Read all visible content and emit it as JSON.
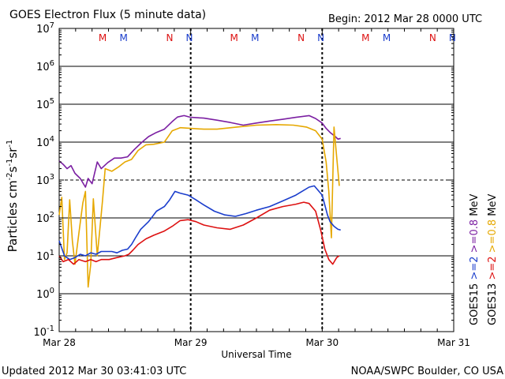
{
  "header": {
    "title": "GOES Electron Flux (5 minute data)",
    "begin": "Begin: 2012 Mar 28 0000 UTC"
  },
  "footer": {
    "updated": "Updated 2012 Mar 30 03:41:03 UTC",
    "credit": "NOAA/SWPC Boulder, CO USA"
  },
  "colors": {
    "goes15_high": "#7b1fa2",
    "goes13_high": "#e6a800",
    "goes15_low": "#1a3dcc",
    "goes13_low": "#dd1111",
    "marker_m": "#dd1111",
    "marker_n": "#1a3dcc"
  },
  "chart_data": {
    "type": "line",
    "title": "GOES Electron Flux (5 minute data)",
    "xlabel": "Universal Time",
    "ylabel": "Particles cm-2 s-1 sr-1",
    "y_scale": "log",
    "ylim_exp": [
      -1,
      7
    ],
    "y_ticks": [
      {
        "exp": -1,
        "base": "10",
        "sup": "-1"
      },
      {
        "exp": 0,
        "base": "10",
        "sup": "0"
      },
      {
        "exp": 1,
        "base": "10",
        "sup": "1"
      },
      {
        "exp": 2,
        "base": "10",
        "sup": "2"
      },
      {
        "exp": 3,
        "base": "10",
        "sup": "3"
      },
      {
        "exp": 4,
        "base": "10",
        "sup": "4"
      },
      {
        "exp": 5,
        "base": "10",
        "sup": "5"
      },
      {
        "exp": 6,
        "base": "10",
        "sup": "6"
      },
      {
        "exp": 7,
        "base": "10",
        "sup": "7"
      }
    ],
    "xlim_days": [
      0,
      3
    ],
    "x_ticks": [
      {
        "day": 0,
        "label": "Mar 28"
      },
      {
        "day": 1,
        "label": "Mar 29"
      },
      {
        "day": 2,
        "label": "Mar 30"
      },
      {
        "day": 3,
        "label": "Mar 31"
      }
    ],
    "threshold_exp": 3,
    "markers": [
      {
        "label": "M",
        "day": 0.33,
        "sat": "GOES13"
      },
      {
        "label": "M",
        "day": 0.49,
        "sat": "GOES15"
      },
      {
        "label": "N",
        "day": 0.84,
        "sat": "GOES13"
      },
      {
        "label": "N",
        "day": 0.99,
        "sat": "GOES15"
      },
      {
        "label": "M",
        "day": 1.33,
        "sat": "GOES13"
      },
      {
        "label": "M",
        "day": 1.49,
        "sat": "GOES15"
      },
      {
        "label": "N",
        "day": 1.84,
        "sat": "GOES13"
      },
      {
        "label": "N",
        "day": 1.99,
        "sat": "GOES15"
      },
      {
        "label": "M",
        "day": 2.33,
        "sat": "GOES13"
      },
      {
        "label": "M",
        "day": 2.49,
        "sat": "GOES15"
      },
      {
        "label": "N",
        "day": 2.84,
        "sat": "GOES13"
      },
      {
        "label": "N",
        "day": 2.99,
        "sat": "GOES15"
      }
    ],
    "legend": {
      "goes15_label": "GOES15",
      "goes13_label": "GOES13",
      "goes15_low": ">=2",
      "goes15_high": ">=0.8",
      "goes13_low": ">=2",
      "goes13_high": ">=0.8",
      "unit": "MeV"
    },
    "series": [
      {
        "name": "GOES15 >=0.8 MeV",
        "color": "#7b1fa2",
        "points": [
          [
            0.0,
            3200
          ],
          [
            0.03,
            2600
          ],
          [
            0.06,
            2000
          ],
          [
            0.09,
            2400
          ],
          [
            0.12,
            1500
          ],
          [
            0.16,
            1100
          ],
          [
            0.2,
            650
          ],
          [
            0.22,
            1100
          ],
          [
            0.25,
            800
          ],
          [
            0.29,
            3000
          ],
          [
            0.32,
            2000
          ],
          [
            0.37,
            2900
          ],
          [
            0.42,
            3800
          ],
          [
            0.47,
            3800
          ],
          [
            0.52,
            4100
          ],
          [
            0.57,
            6300
          ],
          [
            0.63,
            10000
          ],
          [
            0.68,
            14000
          ],
          [
            0.74,
            18000
          ],
          [
            0.8,
            22000
          ],
          [
            0.86,
            35000
          ],
          [
            0.9,
            46000
          ],
          [
            0.95,
            50000
          ],
          [
            1.0,
            45000
          ],
          [
            1.05,
            44000
          ],
          [
            1.1,
            43000
          ],
          [
            1.2,
            38000
          ],
          [
            1.3,
            33000
          ],
          [
            1.4,
            28000
          ],
          [
            1.5,
            32000
          ],
          [
            1.6,
            36000
          ],
          [
            1.7,
            40000
          ],
          [
            1.8,
            45000
          ],
          [
            1.9,
            50000
          ],
          [
            1.95,
            42000
          ],
          [
            2.0,
            32000
          ],
          [
            2.03,
            23000
          ],
          [
            2.06,
            18000
          ],
          [
            2.1,
            14000
          ],
          [
            2.12,
            12000
          ],
          [
            2.14,
            12500
          ]
        ]
      },
      {
        "name": "GOES13 >=0.8 MeV",
        "color": "#e6a800",
        "points": [
          [
            0.0,
            120
          ],
          [
            0.02,
            350
          ],
          [
            0.04,
            8
          ],
          [
            0.06,
            12
          ],
          [
            0.08,
            300
          ],
          [
            0.1,
            25
          ],
          [
            0.12,
            6
          ],
          [
            0.15,
            40
          ],
          [
            0.18,
            250
          ],
          [
            0.2,
            500
          ],
          [
            0.22,
            1.5
          ],
          [
            0.24,
            6
          ],
          [
            0.26,
            320
          ],
          [
            0.29,
            10
          ],
          [
            0.31,
            55
          ],
          [
            0.33,
            300
          ],
          [
            0.35,
            2000
          ],
          [
            0.4,
            1700
          ],
          [
            0.45,
            2200
          ],
          [
            0.5,
            3000
          ],
          [
            0.55,
            3500
          ],
          [
            0.6,
            6000
          ],
          [
            0.66,
            8500
          ],
          [
            0.72,
            8800
          ],
          [
            0.8,
            10000
          ],
          [
            0.86,
            20000
          ],
          [
            0.92,
            24000
          ],
          [
            1.0,
            23000
          ],
          [
            1.1,
            22000
          ],
          [
            1.2,
            22000
          ],
          [
            1.35,
            25000
          ],
          [
            1.5,
            28000
          ],
          [
            1.65,
            29000
          ],
          [
            1.78,
            28000
          ],
          [
            1.88,
            25000
          ],
          [
            1.95,
            20000
          ],
          [
            2.0,
            12000
          ],
          [
            2.03,
            3000
          ],
          [
            2.05,
            500
          ],
          [
            2.07,
            30
          ],
          [
            2.09,
            25000
          ],
          [
            2.11,
            4000
          ],
          [
            2.13,
            700
          ]
        ]
      },
      {
        "name": "GOES15 >=2 MeV",
        "color": "#1a3dcc",
        "points": [
          [
            0.0,
            25
          ],
          [
            0.04,
            10
          ],
          [
            0.08,
            8
          ],
          [
            0.12,
            9
          ],
          [
            0.16,
            11
          ],
          [
            0.2,
            10
          ],
          [
            0.24,
            12
          ],
          [
            0.28,
            11
          ],
          [
            0.32,
            13
          ],
          [
            0.36,
            13
          ],
          [
            0.4,
            13
          ],
          [
            0.44,
            12
          ],
          [
            0.48,
            14
          ],
          [
            0.52,
            15
          ],
          [
            0.55,
            20
          ],
          [
            0.58,
            30
          ],
          [
            0.62,
            50
          ],
          [
            0.68,
            80
          ],
          [
            0.74,
            150
          ],
          [
            0.8,
            200
          ],
          [
            0.84,
            300
          ],
          [
            0.88,
            500
          ],
          [
            0.92,
            450
          ],
          [
            0.98,
            400
          ],
          [
            1.04,
            300
          ],
          [
            1.1,
            220
          ],
          [
            1.18,
            150
          ],
          [
            1.26,
            120
          ],
          [
            1.34,
            110
          ],
          [
            1.42,
            130
          ],
          [
            1.5,
            160
          ],
          [
            1.6,
            200
          ],
          [
            1.7,
            280
          ],
          [
            1.8,
            400
          ],
          [
            1.9,
            650
          ],
          [
            1.94,
            700
          ],
          [
            2.0,
            400
          ],
          [
            2.04,
            120
          ],
          [
            2.06,
            80
          ],
          [
            2.09,
            60
          ],
          [
            2.12,
            50
          ],
          [
            2.14,
            48
          ]
        ]
      },
      {
        "name": "GOES13 >=2 MeV",
        "color": "#dd1111",
        "points": [
          [
            0.0,
            10
          ],
          [
            0.03,
            7
          ],
          [
            0.07,
            8
          ],
          [
            0.11,
            6
          ],
          [
            0.15,
            8
          ],
          [
            0.2,
            7
          ],
          [
            0.24,
            8
          ],
          [
            0.28,
            7
          ],
          [
            0.32,
            8
          ],
          [
            0.38,
            8
          ],
          [
            0.44,
            9
          ],
          [
            0.5,
            10
          ],
          [
            0.53,
            11
          ],
          [
            0.56,
            14
          ],
          [
            0.6,
            20
          ],
          [
            0.66,
            28
          ],
          [
            0.72,
            35
          ],
          [
            0.8,
            45
          ],
          [
            0.86,
            60
          ],
          [
            0.92,
            85
          ],
          [
            0.98,
            90
          ],
          [
            1.04,
            80
          ],
          [
            1.1,
            65
          ],
          [
            1.2,
            55
          ],
          [
            1.3,
            50
          ],
          [
            1.4,
            65
          ],
          [
            1.5,
            100
          ],
          [
            1.6,
            160
          ],
          [
            1.7,
            200
          ],
          [
            1.8,
            230
          ],
          [
            1.86,
            260
          ],
          [
            1.9,
            240
          ],
          [
            1.95,
            150
          ],
          [
            1.99,
            45
          ],
          [
            2.02,
            15
          ],
          [
            2.05,
            8
          ],
          [
            2.08,
            6
          ],
          [
            2.11,
            9
          ],
          [
            2.13,
            10
          ]
        ]
      }
    ]
  }
}
